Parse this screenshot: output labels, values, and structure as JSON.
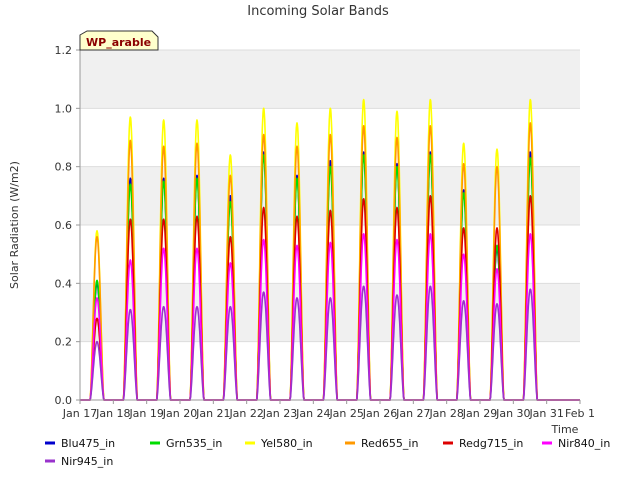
{
  "chart_data": {
    "type": "line",
    "title": "Incoming Solar Bands",
    "ylabel": "Solar Radiation (W/m2)",
    "xlabel": "Time",
    "badge": "WP_arable",
    "ylim": [
      0,
      1.2
    ],
    "yticks": [
      0.0,
      0.2,
      0.4,
      0.6,
      0.8,
      1.0,
      1.2
    ],
    "ytick_labels": [
      "0.0",
      "0.2",
      "0.4",
      "0.6",
      "0.8",
      "1.0",
      "1.2"
    ],
    "xticks": [
      "Jan 17",
      "Jan 18",
      "Jan 19",
      "Jan 20",
      "Jan 21",
      "Jan 22",
      "Jan 23",
      "Jan 24",
      "Jan 25",
      "Jan 26",
      "Jan 27",
      "Jan 28",
      "Jan 29",
      "Jan 30",
      "Jan 31",
      "Feb 1"
    ],
    "grid": "horizontal bands",
    "legend_position": "bottom",
    "days": [
      "Jan 17",
      "Jan 18",
      "Jan 19",
      "Jan 20",
      "Jan 21",
      "Jan 22",
      "Jan 23",
      "Jan 24",
      "Jan 25",
      "Jan 26",
      "Jan 27",
      "Jan 28",
      "Jan 29",
      "Jan 30",
      "Jan 31"
    ],
    "series": [
      {
        "name": "Blu475_in",
        "color": "#0000cc",
        "daily_peak": [
          0.4,
          0.76,
          0.76,
          0.77,
          0.7,
          0.85,
          0.77,
          0.82,
          0.85,
          0.81,
          0.85,
          0.72,
          0.52,
          0.85,
          0.0
        ]
      },
      {
        "name": "Grn535_in",
        "color": "#00dd00",
        "daily_peak": [
          0.41,
          0.74,
          0.75,
          0.76,
          0.68,
          0.84,
          0.76,
          0.8,
          0.84,
          0.8,
          0.84,
          0.71,
          0.53,
          0.83,
          0.0
        ]
      },
      {
        "name": "Yel580_in",
        "color": "#ffff00",
        "daily_peak": [
          0.58,
          0.97,
          0.96,
          0.96,
          0.84,
          1.0,
          0.95,
          1.0,
          1.03,
          0.99,
          1.03,
          0.88,
          0.86,
          1.03,
          0.0
        ]
      },
      {
        "name": "Red655_in",
        "color": "#ff9900",
        "daily_peak": [
          0.56,
          0.89,
          0.87,
          0.88,
          0.77,
          0.91,
          0.87,
          0.91,
          0.94,
          0.9,
          0.94,
          0.81,
          0.8,
          0.95,
          0.0
        ]
      },
      {
        "name": "Redg715_in",
        "color": "#dd0000",
        "daily_peak": [
          0.28,
          0.62,
          0.62,
          0.63,
          0.56,
          0.66,
          0.63,
          0.65,
          0.69,
          0.66,
          0.7,
          0.59,
          0.59,
          0.7,
          0.0
        ]
      },
      {
        "name": "Nir840_in",
        "color": "#ff00ff",
        "daily_peak": [
          0.35,
          0.48,
          0.52,
          0.52,
          0.47,
          0.55,
          0.53,
          0.54,
          0.57,
          0.55,
          0.57,
          0.5,
          0.45,
          0.57,
          0.0
        ]
      },
      {
        "name": "Nir945_in",
        "color": "#9933cc",
        "daily_peak": [
          0.2,
          0.31,
          0.32,
          0.32,
          0.32,
          0.37,
          0.35,
          0.35,
          0.39,
          0.36,
          0.39,
          0.34,
          0.33,
          0.38,
          0.0
        ]
      }
    ]
  }
}
